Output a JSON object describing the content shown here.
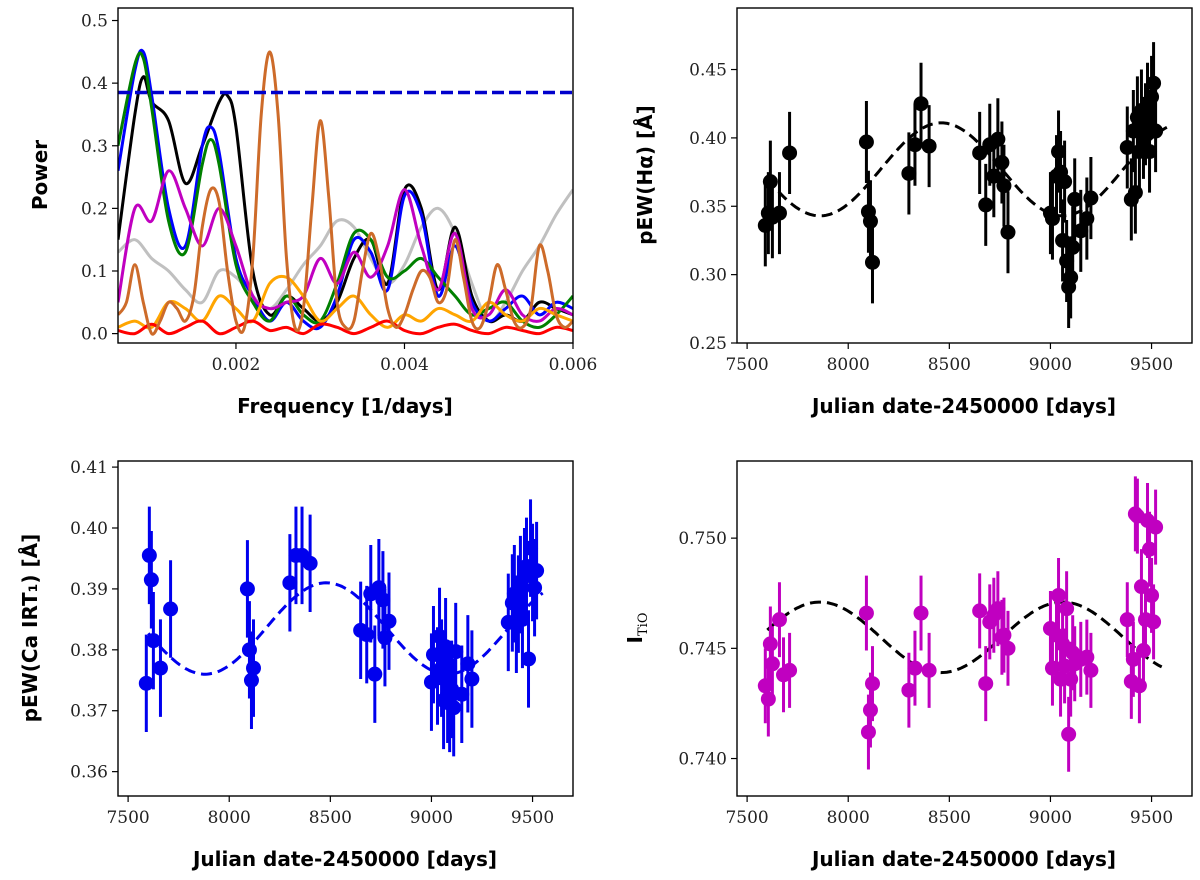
{
  "chart_data": [
    {
      "id": "periodogram",
      "type": "line",
      "xlabel": "Frequency [1/days]",
      "ylabel": "Power",
      "xlim": [
        0.0006,
        0.006
      ],
      "ylim": [
        -0.015,
        0.52
      ],
      "xticks": [
        0.002,
        0.004,
        0.006
      ],
      "xtick_labels": [
        "0.002",
        "0.004",
        "0.006"
      ],
      "yticks": [
        0.0,
        0.1,
        0.2,
        0.3,
        0.4,
        0.5
      ],
      "ytick_labels": [
        "0.0",
        "0.1",
        "0.2",
        "0.3",
        "0.4",
        "0.5"
      ],
      "threshold": {
        "y": 0.385,
        "color": "#0000cc",
        "style": "dashed"
      },
      "series": [
        {
          "name": "grey",
          "color": "#c0c0c0",
          "x": [
            0.0006,
            0.0008,
            0.001,
            0.0012,
            0.0014,
            0.0016,
            0.0018,
            0.002,
            0.0022,
            0.0024,
            0.0026,
            0.0028,
            0.003,
            0.0032,
            0.0034,
            0.0036,
            0.0038,
            0.004,
            0.0042,
            0.0044,
            0.0046,
            0.0048,
            0.005,
            0.0052,
            0.0054,
            0.0056,
            0.0058,
            0.006
          ],
          "y": [
            0.13,
            0.15,
            0.12,
            0.1,
            0.07,
            0.05,
            0.1,
            0.09,
            0.06,
            0.04,
            0.07,
            0.11,
            0.14,
            0.18,
            0.17,
            0.12,
            0.08,
            0.11,
            0.17,
            0.2,
            0.16,
            0.08,
            0.02,
            0.05,
            0.1,
            0.14,
            0.19,
            0.23
          ]
        },
        {
          "name": "black",
          "color": "#000000",
          "x": [
            0.0006,
            0.0008,
            0.0009,
            0.001,
            0.0012,
            0.0014,
            0.0016,
            0.0018,
            0.0019,
            0.002,
            0.0022,
            0.0024,
            0.0026,
            0.0028,
            0.003,
            0.0032,
            0.0034,
            0.0036,
            0.0038,
            0.004,
            0.0042,
            0.0044,
            0.0046,
            0.0048,
            0.005,
            0.0052,
            0.0054,
            0.0056,
            0.0058,
            0.006
          ],
          "y": [
            0.15,
            0.35,
            0.41,
            0.37,
            0.34,
            0.24,
            0.3,
            0.37,
            0.38,
            0.33,
            0.1,
            0.03,
            0.06,
            0.04,
            0.02,
            0.05,
            0.12,
            0.15,
            0.08,
            0.23,
            0.2,
            0.07,
            0.17,
            0.06,
            0.02,
            0.03,
            0.02,
            0.05,
            0.04,
            0.03
          ]
        },
        {
          "name": "blue",
          "color": "#0000ff",
          "x": [
            0.0006,
            0.0008,
            0.0009,
            0.001,
            0.0012,
            0.0014,
            0.0016,
            0.0017,
            0.0018,
            0.002,
            0.0022,
            0.0024,
            0.0026,
            0.0028,
            0.003,
            0.0032,
            0.0034,
            0.0036,
            0.0038,
            0.004,
            0.0042,
            0.0044,
            0.0046,
            0.0048,
            0.005,
            0.0052,
            0.0054,
            0.0056,
            0.0058,
            0.006
          ],
          "y": [
            0.26,
            0.42,
            0.45,
            0.38,
            0.2,
            0.14,
            0.3,
            0.33,
            0.29,
            0.12,
            0.06,
            0.02,
            0.05,
            0.02,
            0.01,
            0.06,
            0.15,
            0.13,
            0.07,
            0.22,
            0.19,
            0.06,
            0.14,
            0.05,
            0.02,
            0.04,
            0.06,
            0.03,
            0.05,
            0.04
          ]
        },
        {
          "name": "green",
          "color": "#008000",
          "x": [
            0.0006,
            0.0008,
            0.0009,
            0.001,
            0.0012,
            0.0014,
            0.0016,
            0.0017,
            0.0018,
            0.002,
            0.0022,
            0.0024,
            0.0026,
            0.0028,
            0.003,
            0.0032,
            0.0034,
            0.0036,
            0.0038,
            0.004,
            0.0042,
            0.0044,
            0.0046,
            0.0048,
            0.005,
            0.0052,
            0.0054,
            0.0056,
            0.0058,
            0.006
          ],
          "y": [
            0.3,
            0.43,
            0.44,
            0.36,
            0.18,
            0.13,
            0.27,
            0.31,
            0.27,
            0.11,
            0.05,
            0.02,
            0.06,
            0.03,
            0.02,
            0.08,
            0.16,
            0.15,
            0.09,
            0.1,
            0.12,
            0.09,
            0.06,
            0.03,
            0.04,
            0.05,
            0.02,
            0.01,
            0.03,
            0.06
          ]
        },
        {
          "name": "magenta",
          "color": "#c000c0",
          "x": [
            0.0006,
            0.0008,
            0.001,
            0.0012,
            0.0014,
            0.0016,
            0.0018,
            0.002,
            0.0022,
            0.0024,
            0.0026,
            0.0028,
            0.003,
            0.0032,
            0.0034,
            0.0036,
            0.0038,
            0.004,
            0.0042,
            0.0044,
            0.0046,
            0.0048,
            0.005,
            0.0052,
            0.0054,
            0.0056,
            0.0058,
            0.006
          ],
          "y": [
            0.05,
            0.2,
            0.18,
            0.26,
            0.2,
            0.14,
            0.2,
            0.14,
            0.06,
            0.04,
            0.05,
            0.06,
            0.12,
            0.08,
            0.13,
            0.09,
            0.14,
            0.23,
            0.14,
            0.07,
            0.16,
            0.04,
            0.03,
            0.07,
            0.03,
            0.02,
            0.04,
            0.03
          ]
        },
        {
          "name": "orange",
          "color": "#ffa500",
          "x": [
            0.0006,
            0.0008,
            0.001,
            0.0012,
            0.0014,
            0.0016,
            0.0018,
            0.002,
            0.0022,
            0.0024,
            0.0026,
            0.0028,
            0.003,
            0.0032,
            0.0034,
            0.0036,
            0.0038,
            0.004,
            0.0042,
            0.0044,
            0.0046,
            0.0048,
            0.005,
            0.0052,
            0.0054,
            0.0056,
            0.0058,
            0.006
          ],
          "y": [
            0.01,
            0.02,
            0.01,
            0.05,
            0.04,
            0.02,
            0.06,
            0.04,
            0.02,
            0.08,
            0.09,
            0.06,
            0.02,
            0.04,
            0.06,
            0.03,
            0.01,
            0.03,
            0.02,
            0.04,
            0.03,
            0.02,
            0.05,
            0.03,
            0.02,
            0.04,
            0.03,
            0.02
          ]
        },
        {
          "name": "red",
          "color": "#ff0000",
          "x": [
            0.0006,
            0.0008,
            0.001,
            0.0012,
            0.0014,
            0.0016,
            0.0018,
            0.002,
            0.0022,
            0.0024,
            0.0026,
            0.0028,
            0.003,
            0.0032,
            0.0034,
            0.0036,
            0.0038,
            0.004,
            0.0042,
            0.0044,
            0.0046,
            0.0048,
            0.005,
            0.0052,
            0.0054,
            0.0056,
            0.0058,
            0.006
          ],
          "y": [
            0.005,
            0.0,
            0.015,
            0.0,
            0.01,
            0.02,
            0.0,
            0.01,
            0.02,
            0.005,
            0.01,
            0.0,
            0.015,
            0.01,
            0.0,
            0.01,
            0.02,
            0.005,
            0.0,
            0.01,
            0.015,
            0.005,
            0.0,
            0.01,
            0.005,
            0.0,
            0.01,
            0.005
          ]
        },
        {
          "name": "brown",
          "color": "#cd6b2a",
          "x": [
            0.0006,
            0.0007,
            0.0008,
            0.0009,
            0.001,
            0.0011,
            0.0012,
            0.0013,
            0.0014,
            0.0015,
            0.0016,
            0.0017,
            0.0018,
            0.0019,
            0.002,
            0.0021,
            0.0022,
            0.0023,
            0.0024,
            0.0025,
            0.0026,
            0.0027,
            0.0028,
            0.0029,
            0.003,
            0.0031,
            0.0032,
            0.0033,
            0.0034,
            0.0035,
            0.0036,
            0.0037,
            0.0038,
            0.0039,
            0.004,
            0.0041,
            0.0042,
            0.0043,
            0.0044,
            0.0045,
            0.0046,
            0.0047,
            0.0048,
            0.0049,
            0.005,
            0.0051,
            0.0052,
            0.0053,
            0.0054,
            0.0055,
            0.0056,
            0.0057,
            0.0058,
            0.0059,
            0.006
          ],
          "y": [
            0.03,
            0.05,
            0.11,
            0.05,
            0.0,
            0.02,
            0.05,
            0.04,
            0.02,
            0.06,
            0.17,
            0.23,
            0.21,
            0.1,
            0.02,
            0.01,
            0.12,
            0.35,
            0.45,
            0.35,
            0.12,
            0.01,
            0.04,
            0.2,
            0.34,
            0.22,
            0.05,
            0.01,
            0.02,
            0.1,
            0.16,
            0.12,
            0.04,
            0.01,
            0.03,
            0.07,
            0.1,
            0.09,
            0.05,
            0.07,
            0.15,
            0.09,
            0.02,
            0.01,
            0.05,
            0.11,
            0.07,
            0.02,
            0.01,
            0.04,
            0.14,
            0.1,
            0.03,
            0.01,
            0.02
          ]
        }
      ]
    },
    {
      "id": "halpha",
      "type": "scatter",
      "xlabel": "Julian date-2450000 [days]",
      "ylabel": "pEW(Hα) [Å]",
      "xlim": [
        7450,
        9700
      ],
      "ylim": [
        0.25,
        0.495
      ],
      "xticks": [
        7500,
        8000,
        8500,
        9000,
        9500
      ],
      "xtick_labels": [
        "7500",
        "8000",
        "8500",
        "9000",
        "9500"
      ],
      "yticks": [
        0.25,
        0.3,
        0.35,
        0.4,
        0.45
      ],
      "ytick_labels": [
        "0.25",
        "0.30",
        "0.35",
        "0.40",
        "0.45"
      ],
      "color": "#000000",
      "model": {
        "color": "#000000",
        "mean": 0.377,
        "amp": 0.034,
        "period": 1200,
        "peak": 8460,
        "x0": 7600,
        "x1": 9600
      },
      "x": [
        7590,
        7605,
        7615,
        7625,
        7660,
        7710,
        8090,
        8100,
        8110,
        8120,
        8300,
        8330,
        8360,
        8400,
        8650,
        8680,
        8700,
        8720,
        8740,
        8760,
        8770,
        8790,
        9000,
        9010,
        9030,
        9040,
        9050,
        9060,
        9070,
        9080,
        9090,
        9100,
        9110,
        9120,
        9150,
        9180,
        9200,
        9380,
        9400,
        9410,
        9420,
        9430,
        9440,
        9450,
        9460,
        9470,
        9480,
        9490,
        9500,
        9510,
        9520
      ],
      "y": [
        0.336,
        0.345,
        0.368,
        0.342,
        0.345,
        0.389,
        0.397,
        0.346,
        0.339,
        0.309,
        0.374,
        0.395,
        0.425,
        0.394,
        0.389,
        0.351,
        0.395,
        0.372,
        0.399,
        0.382,
        0.365,
        0.331,
        0.345,
        0.341,
        0.372,
        0.39,
        0.375,
        0.325,
        0.368,
        0.31,
        0.291,
        0.298,
        0.32,
        0.355,
        0.332,
        0.341,
        0.356,
        0.393,
        0.355,
        0.405,
        0.36,
        0.415,
        0.39,
        0.42,
        0.4,
        0.41,
        0.425,
        0.39,
        0.43,
        0.44,
        0.405
      ],
      "err": 0.03
    },
    {
      "id": "cairt",
      "type": "scatter",
      "xlabel": "Julian date-2450000 [days]",
      "ylabel": "pEW(Ca IRT₁) [Å]",
      "xlim": [
        7450,
        9700
      ],
      "ylim": [
        0.356,
        0.411
      ],
      "xticks": [
        7500,
        8000,
        8500,
        9000,
        9500
      ],
      "xtick_labels": [
        "7500",
        "8000",
        "8500",
        "9000",
        "9500"
      ],
      "yticks": [
        0.36,
        0.37,
        0.38,
        0.39,
        0.4,
        0.41
      ],
      "ytick_labels": [
        "0.36",
        "0.37",
        "0.38",
        "0.39",
        "0.40",
        "0.41"
      ],
      "color": "#0000ee",
      "model": {
        "color": "#0000ee",
        "mean": 0.3835,
        "amp": 0.0075,
        "period": 1200,
        "peak": 8480,
        "x0": 7600,
        "x1": 9550
      },
      "x": [
        7590,
        7605,
        7615,
        7625,
        7660,
        7710,
        8090,
        8100,
        8110,
        8120,
        8300,
        8330,
        8360,
        8400,
        8650,
        8680,
        8700,
        8720,
        8740,
        8760,
        8770,
        8790,
        9000,
        9010,
        9030,
        9040,
        9050,
        9060,
        9070,
        9080,
        9090,
        9100,
        9110,
        9120,
        9150,
        9180,
        9200,
        9380,
        9400,
        9410,
        9420,
        9430,
        9440,
        9450,
        9460,
        9470,
        9480,
        9490,
        9500,
        9510,
        9520
      ],
      "y": [
        0.3745,
        0.3955,
        0.3915,
        0.3815,
        0.377,
        0.3867,
        0.39,
        0.38,
        0.375,
        0.377,
        0.391,
        0.3955,
        0.3955,
        0.3942,
        0.3832,
        0.3825,
        0.3892,
        0.376,
        0.3902,
        0.3882,
        0.382,
        0.3847,
        0.3747,
        0.3792,
        0.3757,
        0.3822,
        0.377,
        0.3717,
        0.3805,
        0.3727,
        0.3712,
        0.3735,
        0.3705,
        0.3797,
        0.3727,
        0.3777,
        0.3752,
        0.3845,
        0.3877,
        0.3892,
        0.3842,
        0.3875,
        0.3907,
        0.385,
        0.392,
        0.3937,
        0.3785,
        0.3967,
        0.3927,
        0.3902,
        0.393
      ],
      "err": 0.008
    },
    {
      "id": "tio",
      "type": "scatter",
      "xlabel": "Julian date-2450000 [days]",
      "ylabel": "I_TiO",
      "ylabel_main": "I",
      "ylabel_sub": "TiO",
      "xlim": [
        7450,
        9700
      ],
      "ylim": [
        0.7383,
        0.7535
      ],
      "xticks": [
        7500,
        8000,
        8500,
        9000,
        9500
      ],
      "xtick_labels": [
        "7500",
        "8000",
        "8500",
        "9000",
        "9500"
      ],
      "yticks": [
        0.74,
        0.745,
        0.75
      ],
      "ytick_labels": [
        "0.740",
        "0.745",
        "0.750"
      ],
      "color": "#c000c0",
      "model": {
        "color": "#000000",
        "mean": 0.7455,
        "amp": 0.0016,
        "period": 1200,
        "peak": 7860,
        "x0": 7600,
        "x1": 9550
      },
      "x": [
        7590,
        7605,
        7615,
        7625,
        7660,
        7680,
        7710,
        8090,
        8100,
        8110,
        8120,
        8300,
        8330,
        8360,
        8400,
        8650,
        8680,
        8700,
        8720,
        8740,
        8760,
        8770,
        8790,
        9000,
        9010,
        9030,
        9040,
        9050,
        9060,
        9070,
        9080,
        9090,
        9100,
        9110,
        9120,
        9150,
        9180,
        9200,
        9380,
        9400,
        9410,
        9420,
        9430,
        9440,
        9450,
        9460,
        9470,
        9480,
        9490,
        9500,
        9510,
        9520
      ],
      "y": [
        0.7433,
        0.7427,
        0.7452,
        0.7443,
        0.7463,
        0.7438,
        0.744,
        0.7466,
        0.7412,
        0.7422,
        0.7434,
        0.7431,
        0.7441,
        0.7466,
        0.744,
        0.7467,
        0.7434,
        0.7462,
        0.7465,
        0.7468,
        0.7455,
        0.7456,
        0.745,
        0.7459,
        0.7441,
        0.7456,
        0.7474,
        0.7436,
        0.7452,
        0.7442,
        0.7468,
        0.7411,
        0.7436,
        0.7448,
        0.7443,
        0.7445,
        0.7446,
        0.744,
        0.7463,
        0.7435,
        0.7445,
        0.7511,
        0.751,
        0.7433,
        0.7478,
        0.7449,
        0.7463,
        0.7508,
        0.7495,
        0.7474,
        0.7462,
        0.7505
      ],
      "err": 0.0017
    }
  ]
}
